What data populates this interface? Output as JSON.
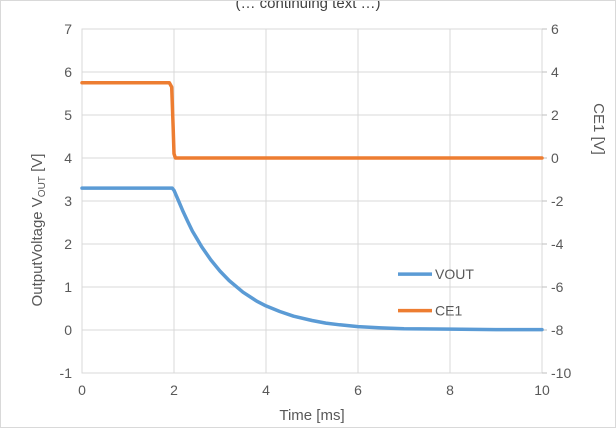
{
  "chart_data": {
    "type": "line",
    "title": "(… continuing text …)",
    "xlabel": "Time [ms]",
    "ylabel_left": "OutputVoltage VOUT [V]",
    "ylabel_left_parts": {
      "prefix": "OutputVoltage  V",
      "subscript": "OUT",
      "suffix": " [V]"
    },
    "ylabel_right": "CE1 [V]",
    "xlim": [
      0,
      10
    ],
    "ylim_left": [
      -1,
      7
    ],
    "ylim_right": [
      -10,
      6
    ],
    "x_ticks": [
      0,
      2,
      4,
      6,
      8,
      10
    ],
    "y_left_ticks": [
      -1,
      0,
      1,
      2,
      3,
      4,
      5,
      6,
      7
    ],
    "y_right_ticks": [
      -10,
      -8,
      -6,
      -4,
      -2,
      0,
      2,
      4,
      6
    ],
    "grid": true,
    "legend_position": "right",
    "series": [
      {
        "name": "VOUT",
        "axis": "left",
        "color": "#5b9bd5",
        "x": [
          0,
          1.96,
          2.0,
          2.1,
          2.2,
          2.3,
          2.4,
          2.5,
          2.6,
          2.8,
          3.0,
          3.2,
          3.5,
          3.8,
          4.0,
          4.3,
          4.6,
          5.0,
          5.3,
          5.6,
          6.0,
          6.5,
          7.0,
          8.0,
          9.0,
          10.0
        ],
        "values": [
          3.3,
          3.3,
          3.25,
          3.0,
          2.75,
          2.52,
          2.3,
          2.12,
          1.94,
          1.63,
          1.37,
          1.15,
          0.88,
          0.67,
          0.56,
          0.43,
          0.32,
          0.22,
          0.16,
          0.12,
          0.08,
          0.05,
          0.03,
          0.02,
          0.01,
          0.01
        ]
      },
      {
        "name": "CE1",
        "axis": "right",
        "color": "#ed7d31",
        "x": [
          0,
          1.9,
          1.95,
          1.98,
          2.0,
          2.03,
          10.0
        ],
        "values": [
          3.5,
          3.5,
          3.3,
          1.5,
          0.2,
          0.0,
          0.0
        ]
      }
    ]
  }
}
